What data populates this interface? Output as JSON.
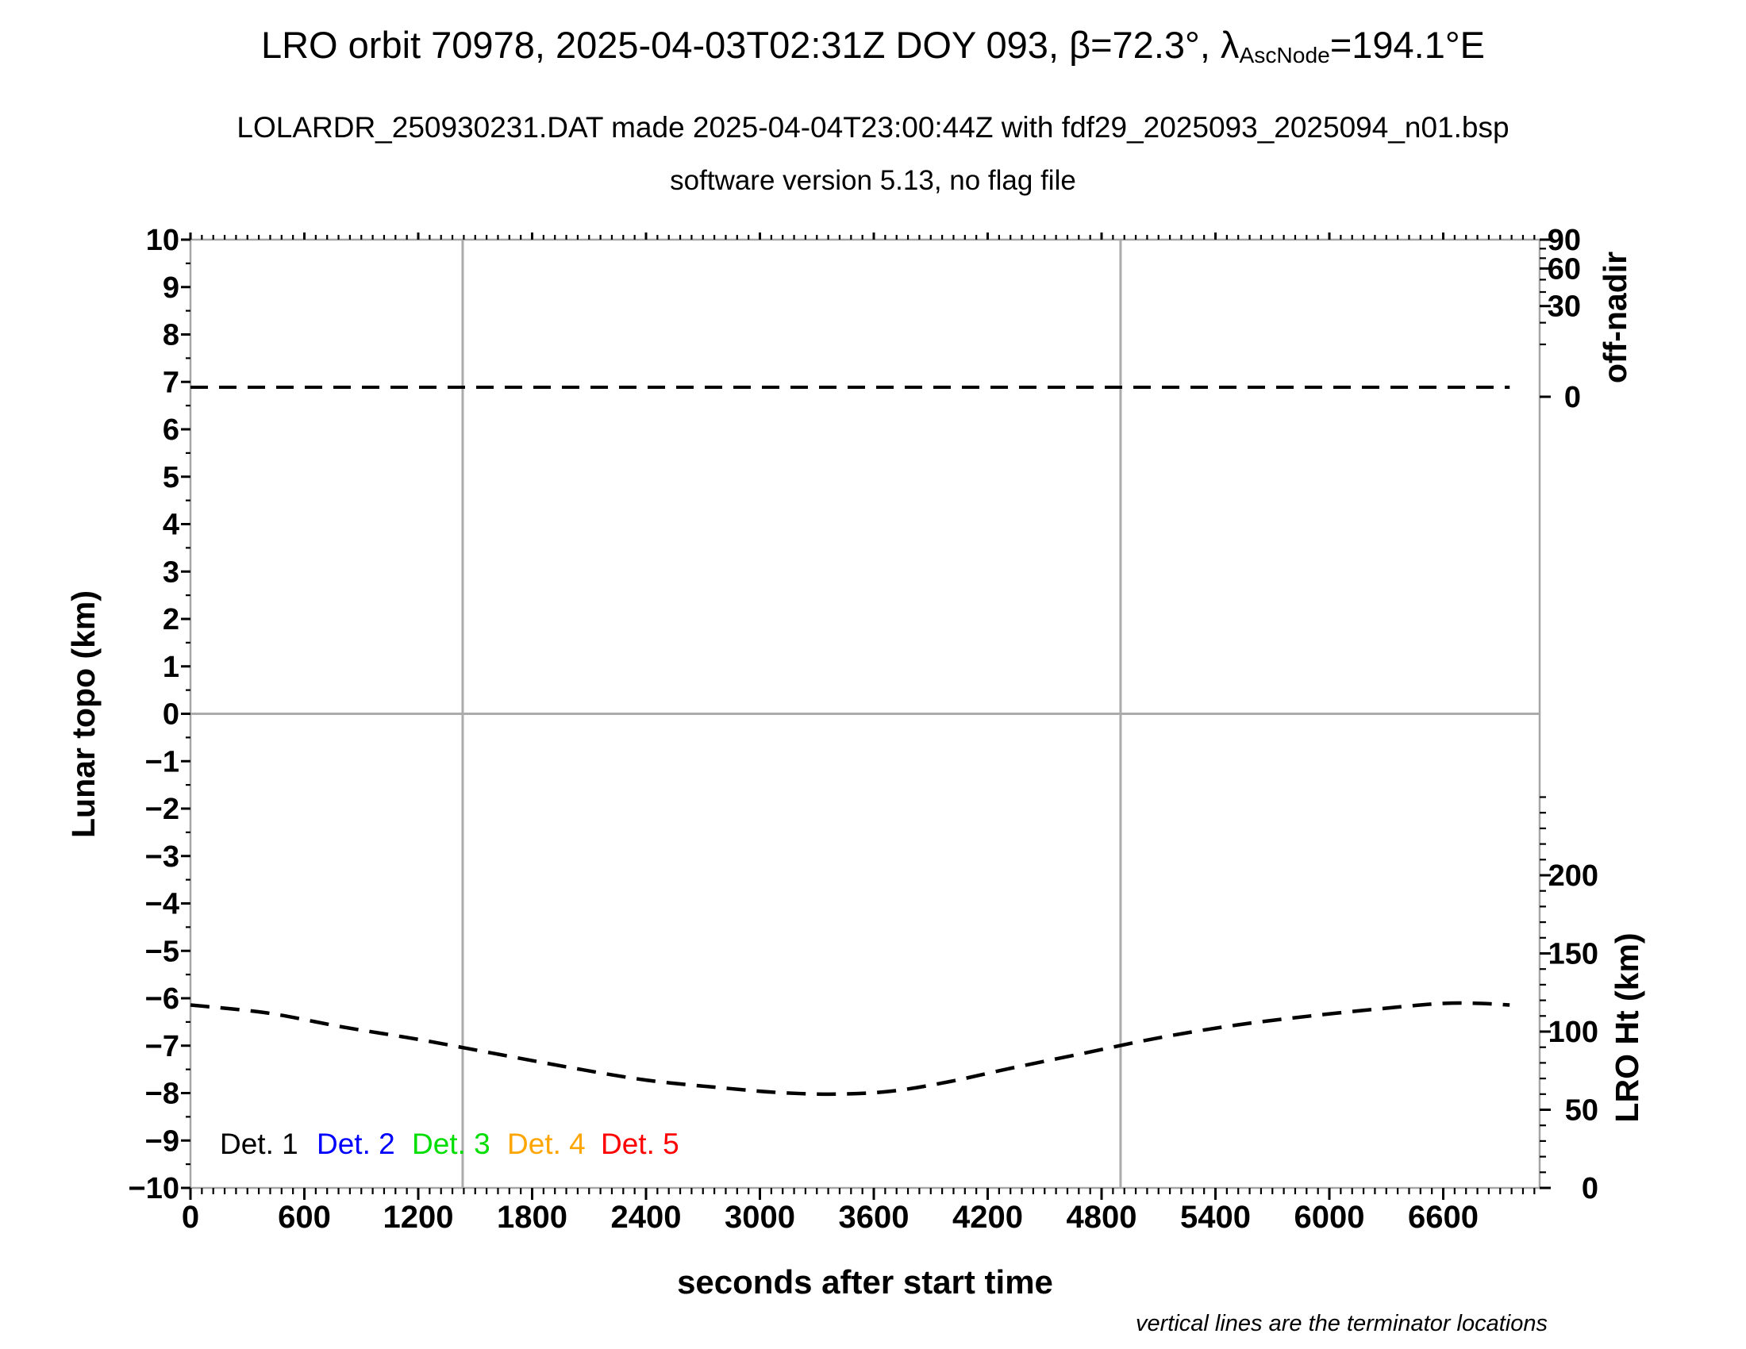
{
  "header": {
    "title_prefix": "LRO orbit 70978, 2025-04-03T02:31Z DOY 093, β=72.3°, λ",
    "title_sub": "AscNode",
    "title_suffix": "=194.1°E",
    "subtitle": "LOLARDR_250930231.DAT made 2025-04-04T23:00:44Z with fdf29_2025093_2025094_n01.bsp",
    "subtitle2": "software version 5.13, no flag file"
  },
  "legend": [
    {
      "label": "Det. 1",
      "color": "#000000"
    },
    {
      "label": "Det. 2",
      "color": "#0000ff"
    },
    {
      "label": "Det. 3",
      "color": "#00dd00"
    },
    {
      "label": "Det. 4",
      "color": "#ffa500"
    },
    {
      "label": "Det. 5",
      "color": "#ff0000"
    }
  ],
  "footnote": "vertical lines are the terminator locations",
  "chart_data": {
    "type": "line",
    "xlabel": "seconds after start time",
    "x_axis": {
      "range_s": [
        0,
        7100
      ],
      "major_ticks_s": [
        0,
        600,
        1200,
        1800,
        2400,
        3000,
        3600,
        4200,
        4800,
        5400,
        6000,
        6600
      ],
      "minor_step_s": 60
    },
    "left_axis": {
      "label": "Lunar topo (km)",
      "range": [
        -10,
        10
      ],
      "major_ticks": [
        10,
        9,
        8,
        7,
        6,
        5,
        4,
        3,
        2,
        1,
        0,
        -1,
        -2,
        -3,
        -4,
        -5,
        -6,
        -7,
        -8,
        -9,
        -10
      ],
      "minor_step": 0.5
    },
    "right_top_axis": {
      "label": "off-nadir",
      "units": "deg",
      "scale": "sqrt",
      "major_ticks": [
        90,
        60,
        30,
        0
      ],
      "minor_ticks": [
        80,
        70,
        50,
        40,
        20,
        10
      ]
    },
    "right_bottom_axis": {
      "label": "LRO Ht (km)",
      "range": [
        0,
        250
      ],
      "major_ticks": [
        200,
        150,
        100,
        50,
        0
      ],
      "minor_step": 10
    },
    "terminator_lines_s": [
      1434,
      4900
    ],
    "grid": {
      "zero_line_topo_km": 0
    },
    "series": [
      {
        "name": "spacecraft off-nadir angle",
        "axis": "right_top",
        "units": "deg",
        "style": "dashed",
        "color": "#000000",
        "points": [
          [
            0,
            0.33
          ],
          [
            6950,
            0.33
          ]
        ]
      },
      {
        "name": "LRO height above surface",
        "axis": "right_bottom",
        "units": "km",
        "style": "dashed",
        "color": "#000000",
        "points": [
          [
            0,
            117
          ],
          [
            400,
            112
          ],
          [
            800,
            103
          ],
          [
            1200,
            95
          ],
          [
            1600,
            86
          ],
          [
            2000,
            77
          ],
          [
            2400,
            69
          ],
          [
            2800,
            64
          ],
          [
            3100,
            61
          ],
          [
            3400,
            60
          ],
          [
            3700,
            62
          ],
          [
            4000,
            68
          ],
          [
            4300,
            76
          ],
          [
            4700,
            86
          ],
          [
            5100,
            96
          ],
          [
            5500,
            104
          ],
          [
            5900,
            110
          ],
          [
            6300,
            115
          ],
          [
            6600,
            118
          ],
          [
            6800,
            118
          ],
          [
            6950,
            117
          ]
        ]
      }
    ]
  }
}
